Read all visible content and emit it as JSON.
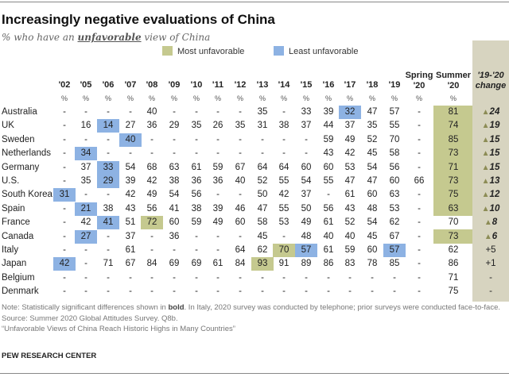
{
  "title": "Increasingly negative evaluations of China",
  "subtitle_pre": "% who have an ",
  "subtitle_em": "unfavorable",
  "subtitle_post": " view of China",
  "legend": [
    {
      "label": "Most unfavorable",
      "color": "#c5c98f"
    },
    {
      "label": "Least unfavorable",
      "color": "#8db2e3"
    }
  ],
  "colors": {
    "change_bg": "#d7d4c0",
    "arrow": "#8c8c55"
  },
  "chart_data": {
    "type": "table",
    "columns": [
      "'02",
      "'05",
      "'06",
      "'07",
      "'08",
      "'09",
      "'10",
      "'11",
      "'12",
      "'13",
      "'14",
      "'15",
      "'16",
      "'17",
      "'18",
      "'19",
      "Spring '20",
      "Summer '20"
    ],
    "column_header_lines": [
      [
        "'02"
      ],
      [
        "'05"
      ],
      [
        "'06"
      ],
      [
        "'07"
      ],
      [
        "'08"
      ],
      [
        "'09"
      ],
      [
        "'10"
      ],
      [
        "'11"
      ],
      [
        "'12"
      ],
      [
        "'13"
      ],
      [
        "'14"
      ],
      [
        "'15"
      ],
      [
        "'16"
      ],
      [
        "'17"
      ],
      [
        "'18"
      ],
      [
        "'19"
      ],
      [
        "Spring",
        "'20"
      ],
      [
        "Summer",
        "'20"
      ]
    ],
    "unit_label": "%",
    "change_header": [
      "'19-'20",
      "change"
    ],
    "rows": [
      {
        "country": "Australia",
        "values": [
          "-",
          "-",
          "-",
          "-",
          "40",
          "-",
          "-",
          "-",
          "-",
          "35",
          "-",
          "33",
          "39",
          "32",
          "47",
          "57",
          "-",
          "81"
        ],
        "change": "24",
        "significant": true,
        "least": [
          "'17"
        ],
        "most": [
          "Summer '20"
        ]
      },
      {
        "country": "UK",
        "values": [
          "-",
          "16",
          "14",
          "27",
          "36",
          "29",
          "35",
          "26",
          "35",
          "31",
          "38",
          "37",
          "44",
          "37",
          "35",
          "55",
          "-",
          "74"
        ],
        "change": "19",
        "significant": true,
        "least": [
          "'06"
        ],
        "most": [
          "Summer '20"
        ]
      },
      {
        "country": "Sweden",
        "values": [
          "-",
          "-",
          "-",
          "40",
          "-",
          "-",
          "-",
          "-",
          "-",
          "-",
          "-",
          "-",
          "59",
          "49",
          "52",
          "70",
          "-",
          "85"
        ],
        "change": "15",
        "significant": true,
        "least": [
          "'07"
        ],
        "most": [
          "Summer '20"
        ]
      },
      {
        "country": "Netherlands",
        "values": [
          "-",
          "34",
          "-",
          "-",
          "-",
          "-",
          "-",
          "-",
          "-",
          "-",
          "-",
          "-",
          "43",
          "42",
          "45",
          "58",
          "-",
          "73"
        ],
        "change": "15",
        "significant": true,
        "least": [
          "'05"
        ],
        "most": [
          "Summer '20"
        ]
      },
      {
        "country": "Germany",
        "values": [
          "-",
          "37",
          "33",
          "54",
          "68",
          "63",
          "61",
          "59",
          "67",
          "64",
          "64",
          "60",
          "60",
          "53",
          "54",
          "56",
          "-",
          "71"
        ],
        "change": "15",
        "significant": true,
        "least": [
          "'06"
        ],
        "most": [
          "Summer '20"
        ]
      },
      {
        "country": "U.S.",
        "values": [
          "-",
          "35",
          "29",
          "39",
          "42",
          "38",
          "36",
          "36",
          "40",
          "52",
          "55",
          "54",
          "55",
          "47",
          "47",
          "60",
          "66",
          "73"
        ],
        "change": "13",
        "significant": true,
        "least": [
          "'06"
        ],
        "most": [
          "Summer '20"
        ]
      },
      {
        "country": "South Korea",
        "values": [
          "31",
          "-",
          "-",
          "42",
          "49",
          "54",
          "56",
          "-",
          "-",
          "50",
          "42",
          "37",
          "-",
          "61",
          "60",
          "63",
          "-",
          "75"
        ],
        "change": "12",
        "significant": true,
        "least": [
          "'02"
        ],
        "most": [
          "Summer '20"
        ]
      },
      {
        "country": "Spain",
        "values": [
          "-",
          "21",
          "38",
          "43",
          "56",
          "41",
          "38",
          "39",
          "46",
          "47",
          "55",
          "50",
          "56",
          "43",
          "48",
          "53",
          "-",
          "63"
        ],
        "change": "10",
        "significant": true,
        "least": [
          "'05"
        ],
        "most": [
          "Summer '20"
        ]
      },
      {
        "country": "France",
        "values": [
          "-",
          "42",
          "41",
          "51",
          "72",
          "60",
          "59",
          "49",
          "60",
          "58",
          "53",
          "49",
          "61",
          "52",
          "54",
          "62",
          "-",
          "70"
        ],
        "change": "8",
        "significant": true,
        "least": [
          "'06"
        ],
        "most": [
          "'08"
        ]
      },
      {
        "country": "Canada",
        "values": [
          "-",
          "27",
          "-",
          "37",
          "-",
          "36",
          "-",
          "-",
          "-",
          "45",
          "-",
          "48",
          "40",
          "40",
          "45",
          "67",
          "-",
          "73"
        ],
        "change": "6",
        "significant": true,
        "least": [
          "'05"
        ],
        "most": [
          "Summer '20"
        ]
      },
      {
        "country": "Italy",
        "values": [
          "-",
          "-",
          "-",
          "61",
          "-",
          "-",
          "-",
          "-",
          "64",
          "62",
          "70",
          "57",
          "61",
          "59",
          "60",
          "57",
          "-",
          "62"
        ],
        "change": "+5",
        "significant": false,
        "least": [
          "'15",
          "'19"
        ],
        "most": [
          "'14"
        ]
      },
      {
        "country": "Japan",
        "values": [
          "42",
          "-",
          "71",
          "67",
          "84",
          "69",
          "69",
          "61",
          "84",
          "93",
          "91",
          "89",
          "86",
          "83",
          "78",
          "85",
          "-",
          "86"
        ],
        "change": "+1",
        "significant": false,
        "least": [
          "'02"
        ],
        "most": [
          "'13"
        ]
      },
      {
        "country": "Belgium",
        "values": [
          "-",
          "-",
          "-",
          "-",
          "-",
          "-",
          "-",
          "-",
          "-",
          "-",
          "-",
          "-",
          "-",
          "-",
          "-",
          "-",
          "-",
          "71"
        ],
        "change": "-",
        "significant": false,
        "least": [],
        "most": []
      },
      {
        "country": "Denmark",
        "values": [
          "-",
          "-",
          "-",
          "-",
          "-",
          "-",
          "-",
          "-",
          "-",
          "-",
          "-",
          "-",
          "-",
          "-",
          "-",
          "-",
          "-",
          "75"
        ],
        "change": "-",
        "significant": false,
        "least": [],
        "most": []
      }
    ]
  },
  "notes": {
    "note_pre": "Note: Statistically significant differences shown in ",
    "note_bold": "bold",
    "note_post": ". In Italy, 2020 survey was conducted by telephone; prior surveys were conducted face-to-face.",
    "source": "Source: Summer 2020 Global Attitudes Survey. Q8b.",
    "report": "“Unfavorable Views of China Reach Historic Highs in Many Countries”"
  },
  "org": "PEW RESEARCH CENTER"
}
